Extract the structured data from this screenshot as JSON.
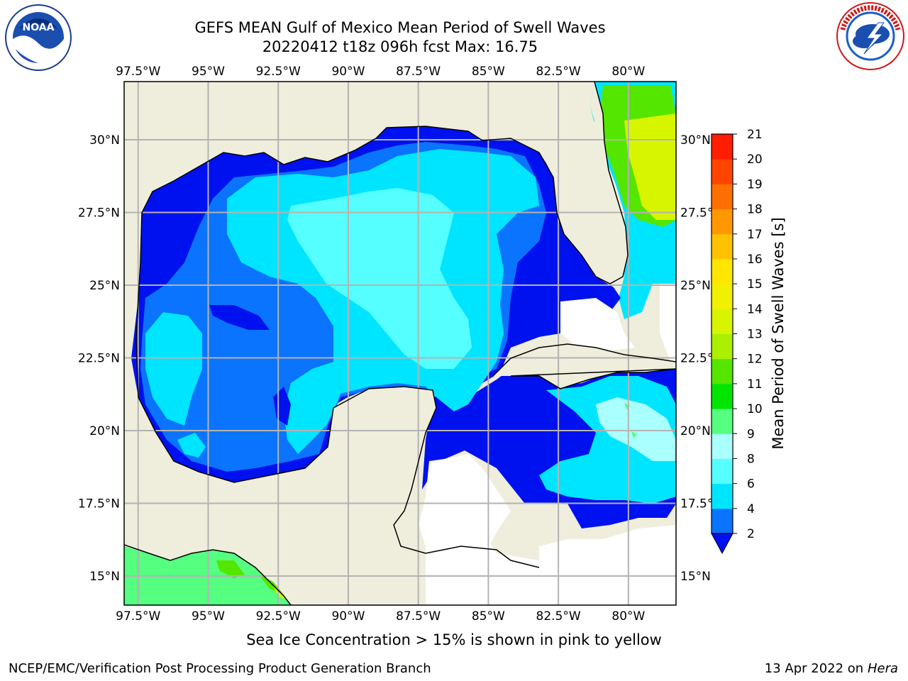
{
  "header": {
    "title": "GEFS MEAN Gulf of Mexico Mean Period of Swell Waves",
    "subtitle": "20220412 t18z 096h fcst   Max: 16.75"
  },
  "logos": {
    "left": "noaa-logo",
    "right": "nws-logo"
  },
  "chart_data": {
    "type": "heatmap",
    "title": "GEFS MEAN Gulf of Mexico Mean Period of Swell Waves",
    "subtitle": "20220412 t18z 096h fcst   Max: 16.75",
    "x_tick_labels": [
      "97.5°W",
      "95°W",
      "92.5°W",
      "90°W",
      "87.5°W",
      "85°W",
      "82.5°W",
      "80°W"
    ],
    "x_tick_values": [
      -97.5,
      -95,
      -92.5,
      -90,
      -87.5,
      -85,
      -82.5,
      -80
    ],
    "y_tick_labels_left": [
      "30°N",
      "27.5°N",
      "25°N",
      "22.5°N",
      "20°N",
      "17.5°N",
      "15°N"
    ],
    "y_tick_labels_right": [
      "30°N",
      "27.5°N",
      "25°N",
      "22.5°N",
      "20°N",
      "17.5°N",
      "15°N"
    ],
    "y_tick_values": [
      30,
      27.5,
      25,
      22.5,
      20,
      17.5,
      15
    ],
    "xlim": [
      -98,
      -78.3
    ],
    "ylim": [
      14,
      32
    ],
    "grid": true,
    "colorbar": {
      "label": "Mean Period of Swell Waves [s]",
      "ticks": [
        2,
        4,
        6,
        8,
        9,
        10,
        11,
        12,
        13,
        14,
        15,
        16,
        17,
        18,
        19,
        20,
        21
      ],
      "levels": [
        2,
        4,
        6,
        8,
        9,
        10,
        11,
        12,
        13,
        14,
        15,
        16,
        17,
        18,
        19,
        20,
        21
      ],
      "colors": [
        "#0a74ff",
        "#00e5ff",
        "#55ffff",
        "#aaffff",
        "#55ff80",
        "#00e600",
        "#55e600",
        "#aaf000",
        "#d8f500",
        "#f0f000",
        "#ffe600",
        "#ffc200",
        "#ff9800",
        "#ff7000",
        "#ff4400",
        "#ff1e00"
      ],
      "extend_min_color": "#0011f0"
    },
    "max_value": 16.75,
    "colors": {
      "land": "#efeddc",
      "ocean_undefined": "#ffffff",
      "gridline": "#b3b3b3",
      "coastline": "#000000"
    }
  },
  "footnote": "Sea Ice Concentration > 15% is shown in pink to yellow",
  "credits": {
    "left": "NCEP/EMC/Verification Post Processing Product Generation Branch",
    "right_date": "13 Apr 2022 on ",
    "right_host": "Hera"
  }
}
